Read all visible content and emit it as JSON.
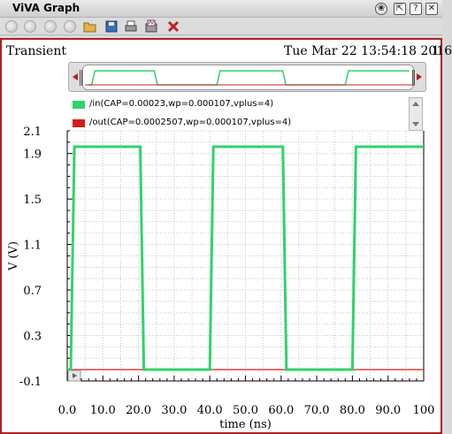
{
  "window": {
    "title": "ViVA Graph",
    "close_glyph": "✕"
  },
  "toolbar": {
    "icons": [
      "circle-icon",
      "circle-icon",
      "circle-icon",
      "circle-icon",
      "open-folder-icon",
      "save-icon",
      "print-icon",
      "print-waveform-icon",
      "delete-x-icon"
    ]
  },
  "graph": {
    "tab": "Transient",
    "timestamp": "Tue Mar 22 13:54:18 2016",
    "subwindow_index": "1"
  },
  "colors": {
    "in_trace": "#2fd46a",
    "out_trace": "#d81b1b",
    "frame": "#b02020",
    "grid": "#c8c8c8"
  },
  "chart_data": {
    "type": "line",
    "title": "",
    "xlabel": "time (ns)",
    "ylabel": "V (V)",
    "xlim": [
      0,
      100
    ],
    "ylim": [
      -0.1,
      2.1
    ],
    "x_ticks": [
      "0.0",
      "10.0",
      "20.0",
      "30.0",
      "40.0",
      "50.0",
      "60.0",
      "70.0",
      "80.0",
      "90.0",
      "100"
    ],
    "y_ticks": [
      "2.1",
      "1.9",
      "1.5",
      "1.1",
      "0.7",
      "0.3",
      "-0.1"
    ],
    "legend_placement": "top",
    "grid": true,
    "series": [
      {
        "name": "/in(CAP=0.00023,wp=0.000107,vplus=4)",
        "color": "#2fd46a",
        "x": [
          0,
          1,
          2,
          20.5,
          21.5,
          40,
          41,
          60.5,
          61.5,
          80,
          81,
          100
        ],
        "y": [
          0,
          0,
          1.96,
          1.96,
          0,
          0,
          1.96,
          1.96,
          0,
          0,
          1.96,
          1.96
        ]
      },
      {
        "name": "/out(CAP=0.0002507,wp=0.000107,vplus=4)",
        "color": "#d81b1b",
        "x": [
          0,
          100
        ],
        "y": [
          0,
          0
        ]
      }
    ]
  }
}
